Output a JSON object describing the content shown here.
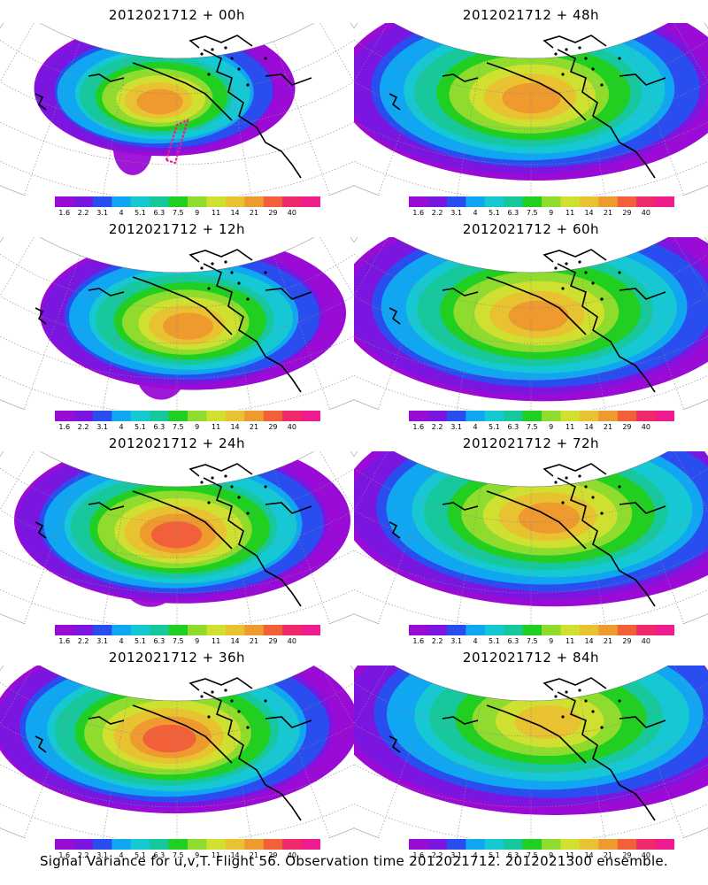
{
  "figure": {
    "caption": "Signal Variance for u,v,T. Flight 56. Observation time 2012021712. 2012021300 ensemble."
  },
  "colorbar": {
    "labels": [
      "1.6",
      "2.2",
      "3.1",
      "4",
      "5.1",
      "6.3",
      "7.5",
      "9",
      "11",
      "14",
      "21",
      "29",
      "40"
    ],
    "colors": [
      "#9b0bd6",
      "#7a16e0",
      "#2a4df0",
      "#11a6f2",
      "#16c8d4",
      "#17c89c",
      "#21cf21",
      "#8fdc2e",
      "#d0e030",
      "#e8c230",
      "#ee9a2e",
      "#f2603a",
      "#ef2a6a",
      "#ee1c8c"
    ],
    "color_names": [
      "violet",
      "purple",
      "blue",
      "sky",
      "cyan",
      "teal",
      "green",
      "yellow-green",
      "yellow",
      "gold",
      "orange",
      "red-orange",
      "red",
      "magenta"
    ]
  },
  "panels": [
    {
      "title": "2012021712 + 00h",
      "intensity": 0.65,
      "spread": 0.55,
      "hot": [
        0.45,
        0.42
      ],
      "track": true
    },
    {
      "title": "2012021712 + 12h",
      "intensity": 0.7,
      "spread": 0.7,
      "hot": [
        0.53,
        0.48
      ],
      "track": false
    },
    {
      "title": "2012021712 + 24h",
      "intensity": 0.75,
      "spread": 0.8,
      "hot": [
        0.5,
        0.44
      ],
      "track": false
    },
    {
      "title": "2012021712 + 36h",
      "intensity": 0.75,
      "spread": 0.9,
      "hot": [
        0.48,
        0.38
      ],
      "track": false
    },
    {
      "title": "2012021712 + 48h",
      "intensity": 0.72,
      "spread": 1.0,
      "hot": [
        0.5,
        0.4
      ],
      "track": false
    },
    {
      "title": "2012021712 + 60h",
      "intensity": 0.68,
      "spread": 1.05,
      "hot": [
        0.52,
        0.42
      ],
      "track": false
    },
    {
      "title": "2012021712 + 72h",
      "intensity": 0.62,
      "spread": 1.1,
      "hot": [
        0.55,
        0.35
      ],
      "track": false
    },
    {
      "title": "2012021712 + 84h",
      "intensity": 0.6,
      "spread": 1.15,
      "hot": [
        0.55,
        0.3
      ],
      "track": false
    }
  ]
}
